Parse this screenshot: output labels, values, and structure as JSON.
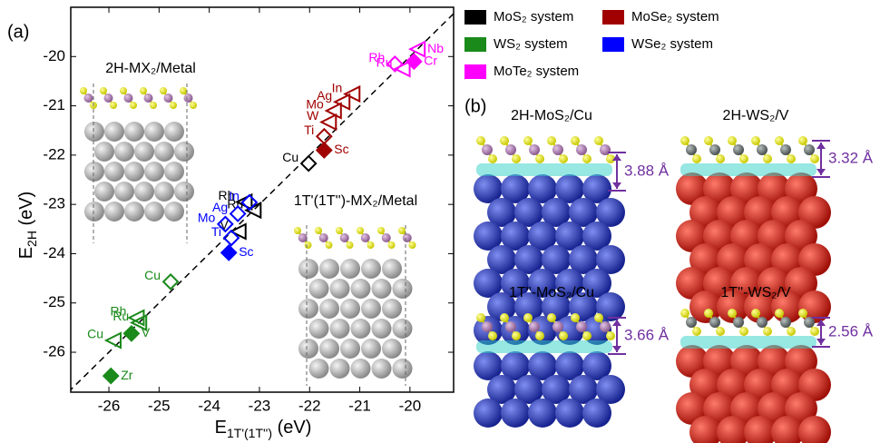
{
  "chart_data": {
    "type": "scatter",
    "xlabel": {
      "text": "E",
      "sub": "1T'(1T'')",
      "suffix": " (eV)"
    },
    "ylabel": {
      "text": "E",
      "sub": "2H",
      "suffix": " (eV)"
    },
    "xlim": [
      -26.76,
      -19.13
    ],
    "ylim": [
      -26.81,
      -19.0
    ],
    "xticks": [
      -26,
      -25,
      -24,
      -23,
      -22,
      -21,
      -20
    ],
    "yticks": [
      -26,
      -25,
      -24,
      -23,
      -22,
      -21,
      -20
    ],
    "diagonal": true,
    "series": [
      {
        "name": "MoS₂ system",
        "color": "#000000",
        "labels": [
          "Cu",
          "Rh",
          "Ru",
          "V"
        ],
        "markers": [
          "open-diamond",
          "open-triangle",
          "open-triangle",
          "open-triangle"
        ],
        "x": [
          -22.02,
          -23.3,
          -23.12,
          -23.42
        ],
        "values": [
          -22.17,
          -22.95,
          -23.12,
          -23.55
        ]
      },
      {
        "name": "MoSe₂ system",
        "color": "#a00000",
        "labels": [
          "In",
          "Ag",
          "Mo",
          "W",
          "Ti",
          "Sc"
        ],
        "markers": [
          "open-triangle",
          "open-triangle",
          "open-triangle",
          "open-triangle",
          "open-diamond",
          "filled-diamond"
        ],
        "x": [
          -21.15,
          -21.35,
          -21.52,
          -21.62,
          -21.71,
          -21.71
        ],
        "values": [
          -20.76,
          -20.92,
          -21.1,
          -21.33,
          -21.62,
          -21.9
        ]
      },
      {
        "name": "WS₂ system",
        "color": "#1a8a1a",
        "labels": [
          "Cu",
          "Rh",
          "Ru",
          "V",
          "Cu",
          "Zr"
        ],
        "markers": [
          "open-diamond",
          "open-triangle",
          "open-triangle",
          "filled-diamond",
          "open-triangle",
          "filled-diamond"
        ],
        "x": [
          -24.77,
          -25.45,
          -25.4,
          -25.55,
          -25.91,
          -25.96
        ],
        "values": [
          -24.57,
          -25.3,
          -25.4,
          -25.62,
          -25.76,
          -26.48
        ]
      },
      {
        "name": "WSe₂ system",
        "color": "#0000ff",
        "labels": [
          "In",
          "Ag",
          "Mo",
          "Ti",
          "Sc"
        ],
        "markers": [
          "open-diamond",
          "open-diamond",
          "open-diamond",
          "open-diamond",
          "filled-diamond"
        ],
        "x": [
          -23.2,
          -23.43,
          -23.68,
          -23.56,
          -23.61
        ],
        "values": [
          -22.96,
          -23.19,
          -23.4,
          -23.68,
          -23.98
        ]
      },
      {
        "name": "MoTe₂ system",
        "color": "#ff00ff",
        "labels": [
          "Rh",
          "Ru",
          "Nb",
          "Cr"
        ],
        "markers": [
          "open-diamond",
          "open-triangle",
          "open-triangle",
          "filled-diamond"
        ],
        "x": [
          -20.3,
          -20.15,
          -19.85,
          -19.92
        ],
        "values": [
          -20.15,
          -20.25,
          -19.85,
          -20.1
        ]
      }
    ]
  },
  "panels": {
    "a_label": "(a)",
    "b_label": "(b)",
    "insets": [
      "2H-MX₂/Metal",
      "1T'(1T'')-MX₂/Metal"
    ],
    "structures": [
      {
        "title": "2H-MoS₂/Cu",
        "distance": "3.88 Å"
      },
      {
        "title": "2H-WS₂/V",
        "distance": "3.32 Å"
      },
      {
        "title": "1T''-MoS₂/Cu",
        "distance": "3.66 Å"
      },
      {
        "title": "1T''-WS₂/V",
        "distance": "2.56 Å"
      }
    ]
  }
}
